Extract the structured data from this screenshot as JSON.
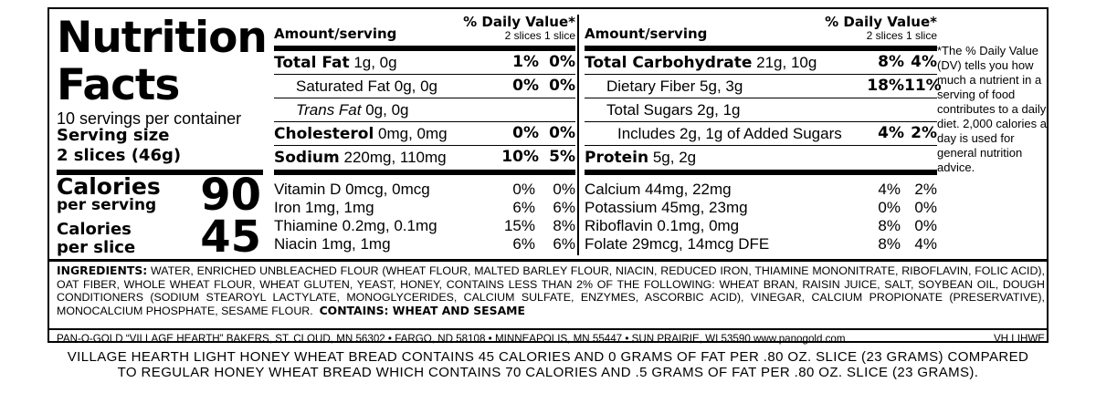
{
  "title_line1": "Nutrition",
  "title_line2": "Facts",
  "servings_per_container": "10 servings per container",
  "serving_size_label": "Serving size",
  "serving_size_value": "2 slices (46g)",
  "calories": [
    {
      "label1": "Calories",
      "label2": "per serving",
      "value": "90"
    },
    {
      "label1": "Calories",
      "label2": "per slice",
      "value": "45"
    }
  ],
  "header": {
    "amount": "Amount/serving",
    "dv": "% Daily Value*",
    "sub": "2 slices 1 slice"
  },
  "left_rows": [
    {
      "name": "Total Fat",
      "amount": "1g, 0g",
      "dv1": "1%",
      "dv2": "0%"
    },
    {
      "name": "Saturated Fat",
      "amount": "0g, 0g",
      "dv1": "0%",
      "dv2": "0%"
    },
    {
      "name": "Trans Fat",
      "amount": "0g, 0g",
      "dv1": "",
      "dv2": ""
    },
    {
      "name": "Cholesterol",
      "amount": "0mg, 0mg",
      "dv1": "0%",
      "dv2": "0%"
    },
    {
      "name": "Sodium",
      "amount": "220mg, 110mg",
      "dv1": "10%",
      "dv2": "5%"
    }
  ],
  "right_rows": [
    {
      "name": "Total Carbohydrate",
      "amount": "21g, 10g",
      "dv1": "8%",
      "dv2": "4%"
    },
    {
      "name": "Dietary Fiber",
      "amount": "5g, 3g",
      "dv1": "18%",
      "dv2": "11%"
    },
    {
      "name": "Total Sugars",
      "amount": "2g, 1g",
      "dv1": "",
      "dv2": ""
    },
    {
      "name": "Includes 2g, 1g of Added Sugars",
      "amount": "",
      "dv1": "4%",
      "dv2": "2%"
    },
    {
      "name": "Protein",
      "amount": "5g, 2g",
      "dv1": "",
      "dv2": ""
    }
  ],
  "left_vitamins": [
    {
      "text": "Vitamin D 0mcg, 0mcg",
      "dv1": "0%",
      "dv2": "0%"
    },
    {
      "text": "Iron 1mg, 1mg",
      "dv1": "6%",
      "dv2": "6%"
    },
    {
      "text": "Thiamine 0.2mg, 0.1mg",
      "dv1": "15%",
      "dv2": "8%"
    },
    {
      "text": "Niacin 1mg, 1mg",
      "dv1": "6%",
      "dv2": "6%"
    }
  ],
  "right_vitamins": [
    {
      "text": "Calcium 44mg, 22mg",
      "dv1": "4%",
      "dv2": "2%"
    },
    {
      "text": "Potassium 45mg, 23mg",
      "dv1": "0%",
      "dv2": "0%"
    },
    {
      "text": "Riboflavin 0.1mg, 0mg",
      "dv1": "8%",
      "dv2": "0%"
    },
    {
      "text": "Folate 29mcg, 14mcg DFE",
      "dv1": "8%",
      "dv2": "4%"
    }
  ],
  "footnote": "*The % Daily Value (DV) tells you how much a nutrient in a serving of food contributes to a daily diet. 2,000 calories a day is used for general nutrition advice.",
  "ingredients_label": "INGREDIENTS:",
  "ingredients_text": "WATER, ENRICHED UNBLEACHED FLOUR (WHEAT FLOUR, MALTED BARLEY FLOUR, NIACIN, REDUCED IRON, THIAMINE MONONITRATE, RIBOFLAVIN, FOLIC ACID), OAT FIBER, WHOLE WHEAT FLOUR, WHEAT GLUTEN, YEAST, HONEY, CONTAINS LESS THAN 2% OF THE FOLLOWING: WHEAT BRAN, RAISIN JUICE, SALT, SOYBEAN OIL, DOUGH CONDITIONERS (SODIUM STEAROYL LACTYLATE, MONOGLYCERIDES, CALCIUM SULFATE, ENZYMES, ASCORBIC ACID), VINEGAR, CALCIUM PROPIONATE (PRESERVATIVE), MONOCALCIUM PHOSPHATE, SESAME FLOUR.",
  "contains": "CONTAINS: WHEAT AND SESAME",
  "manufacturer": "PAN-O-GOLD “VILLAGE HEARTH” BAKERS,  ST. CLOUD, MN  56302  •  FARGO, ND  58108 • MINNEAPOLIS, MN  55447 • SUN PRAIRIE, WI  53590   www.panogold.com",
  "code": "VH LIHWE",
  "claim_line1": "VILLAGE HEARTH LIGHT HONEY WHEAT BREAD CONTAINS 45 CALORIES AND 0 GRAMS OF FAT PER .80 OZ. SLICE (23 GRAMS) COMPARED",
  "claim_line2": "TO REGULAR HONEY WHEAT BREAD WHICH CONTAINS 70 CALORIES AND .5 GRAMS OF FAT PER .80 OZ. SLICE (23 GRAMS)."
}
